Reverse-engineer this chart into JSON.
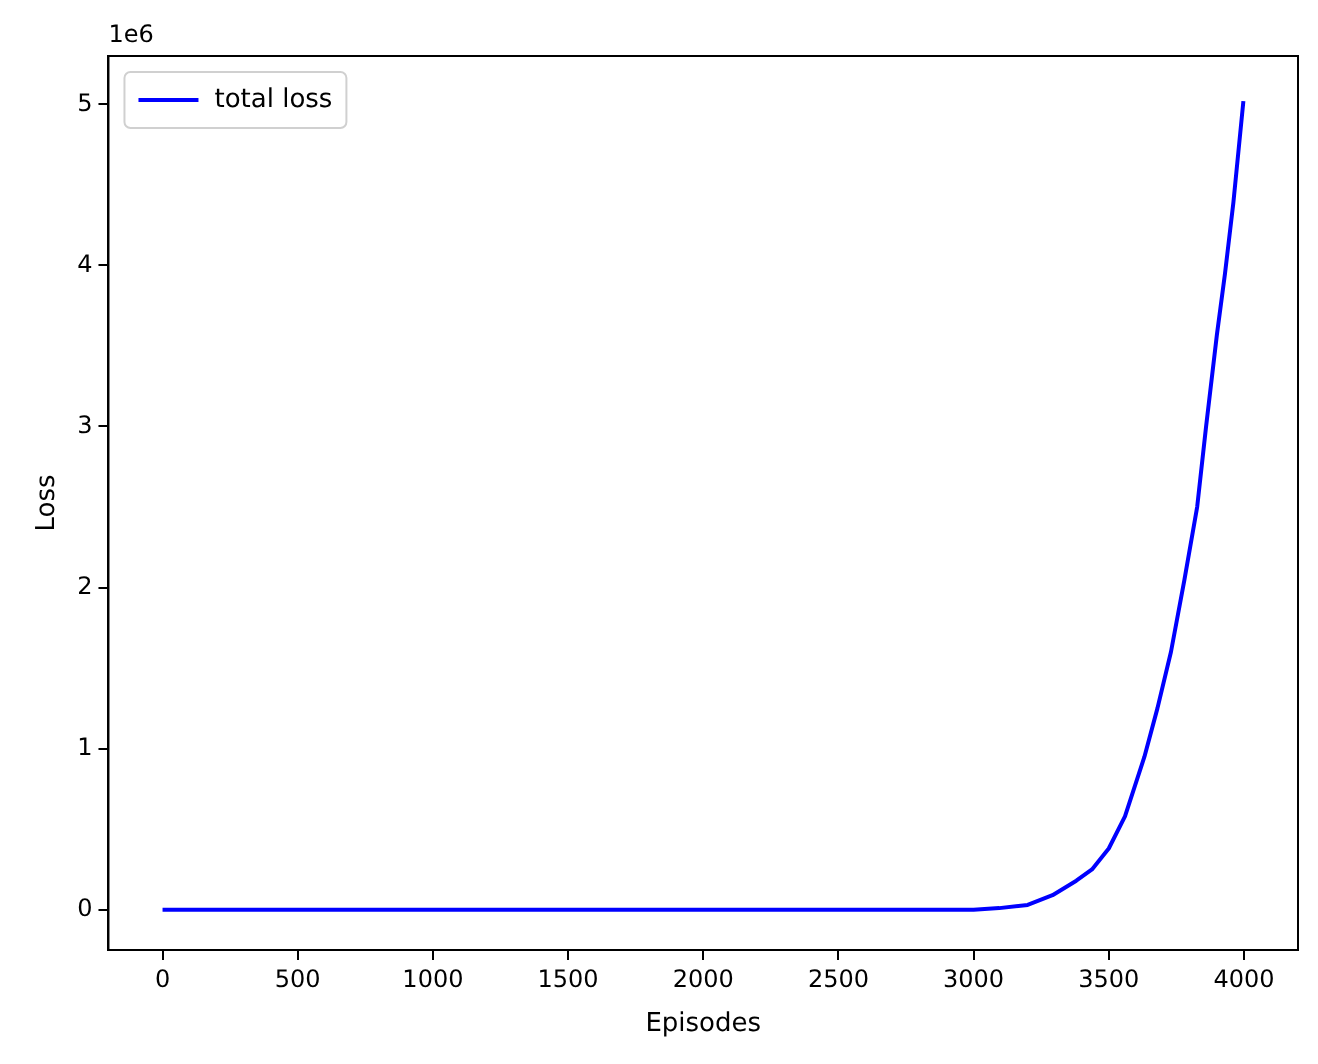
{
  "chart_data": {
    "type": "line",
    "xlabel": "Episodes",
    "ylabel": "Loss",
    "annotations": [
      "1e6"
    ],
    "series": [
      {
        "name": "total loss",
        "color": "#0000ff",
        "x": [
          0,
          500,
          1000,
          1500,
          2000,
          2500,
          3000,
          3095,
          3200,
          3292,
          3380,
          3438,
          3500,
          3560,
          3632,
          3680,
          3730,
          3780,
          3827,
          3860,
          3900,
          3930,
          3961,
          3998
        ],
        "values": [
          0,
          0,
          0,
          0,
          0,
          0,
          0,
          0.01,
          0.03,
          0.09,
          0.18,
          0.25,
          0.38,
          0.58,
          0.95,
          1.25,
          1.6,
          2.05,
          2.5,
          3.0,
          3.57,
          3.95,
          4.39,
          5.02
        ]
      }
    ],
    "xlim": [
      -200,
      4200
    ],
    "xticks": [
      0,
      500,
      1000,
      1500,
      2000,
      2500,
      3000,
      3500,
      4000
    ],
    "ylim": [
      -0.25,
      5.3
    ],
    "yticks": [
      0,
      1,
      2,
      3,
      4,
      5
    ],
    "grid": false,
    "legend": "top left",
    "marker": "none",
    "line_style": "solid"
  }
}
